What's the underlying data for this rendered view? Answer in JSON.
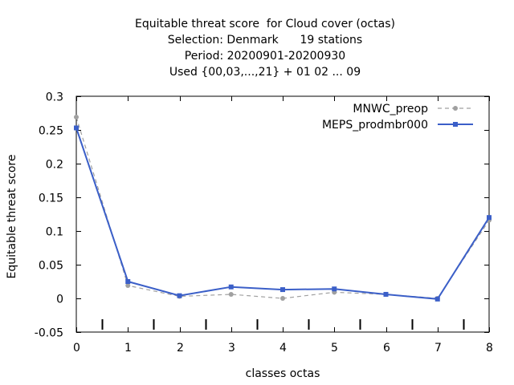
{
  "chart_data": {
    "type": "line",
    "title_lines": [
      "Equitable threat score  for Cloud cover (octas)",
      "Selection: Denmark      19 stations",
      "Period: 20200901-20200930",
      "Used {00,03,...,21} + 01 02 ... 09"
    ],
    "xlabel": "classes octas",
    "ylabel": "Equitable threat score",
    "x": [
      0,
      1,
      2,
      3,
      4,
      5,
      6,
      7,
      8
    ],
    "xlim": [
      0,
      8
    ],
    "ylim": [
      -0.05,
      0.3
    ],
    "xticks": [
      "0",
      "1",
      "2",
      "3",
      "4",
      "5",
      "6",
      "7",
      "8"
    ],
    "yticks": [
      "-0.05",
      "0",
      "0.05",
      "0.1",
      "0.15",
      "0.2",
      "0.25",
      "0.3"
    ],
    "ytick_values": [
      -0.05,
      0,
      0.05,
      0.1,
      0.15,
      0.2,
      0.25,
      0.3
    ],
    "minor_tick_positions": [
      0.5,
      1.5,
      2.5,
      3.5,
      4.5,
      5.5,
      6.5,
      7.5
    ],
    "legend_position": "top-right",
    "series": [
      {
        "name": "MNWC_preop",
        "values": [
          0.269,
          0.019,
          0.003,
          0.006,
          0.0,
          0.009,
          0.006,
          0.0,
          0.116
        ],
        "color": "#a0a0a0",
        "style": "dashed",
        "marker": "circle"
      },
      {
        "name": "MEPS_prodmbr000",
        "values": [
          0.253,
          0.025,
          0.004,
          0.017,
          0.013,
          0.014,
          0.006,
          -0.001,
          0.12
        ],
        "color": "#3b5fc8",
        "style": "solid",
        "marker": "square"
      }
    ]
  }
}
